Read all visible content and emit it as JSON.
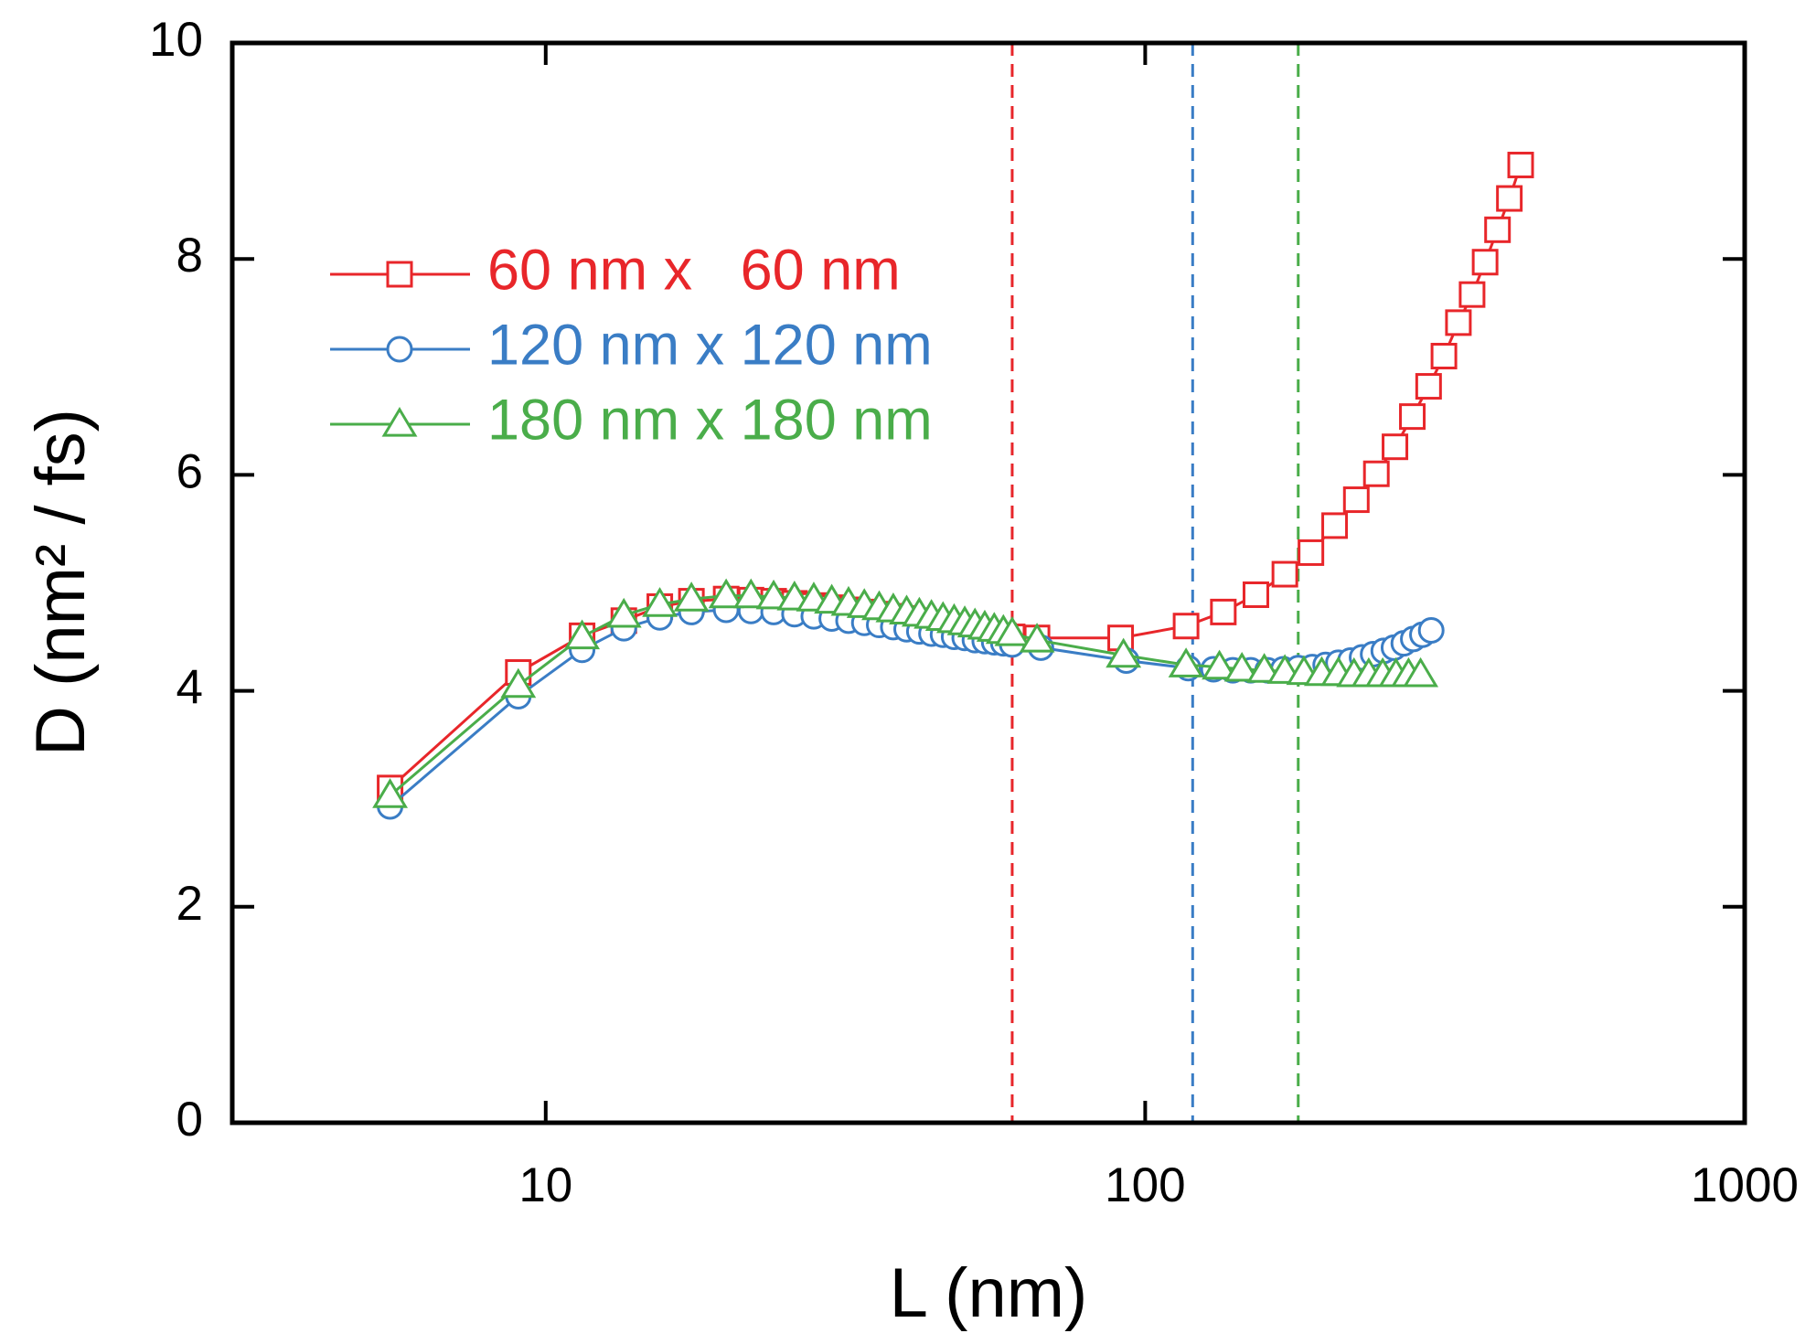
{
  "chart_data": {
    "type": "line",
    "xlabel": "L (nm)",
    "ylabel": "D (nm² / fs)",
    "xscale": "log",
    "xlim": [
      3,
      1000
    ],
    "xticks": [
      10,
      100,
      1000
    ],
    "ylim": [
      0,
      10
    ],
    "yticks": [
      0,
      2,
      4,
      6,
      8,
      10
    ],
    "legend": "upper left",
    "grid": false,
    "vlines": [
      {
        "x": 60,
        "color": "#e8262a"
      },
      {
        "x": 120,
        "color": "#3a7dc5"
      },
      {
        "x": 180,
        "color": "#4aad4a"
      }
    ],
    "series": [
      {
        "name": "60 nm x   60 nm",
        "color": "#e8262a",
        "marker": "square",
        "x": [
          5.5,
          9,
          11.5,
          13.5,
          15.5,
          17.5,
          20,
          22,
          24,
          26,
          28,
          30,
          32,
          34,
          36,
          38,
          40,
          42,
          44,
          46,
          48,
          50,
          52,
          54,
          56,
          58,
          60,
          66,
          91,
          117,
          135,
          153,
          171,
          189,
          207,
          225,
          243,
          261,
          279,
          297,
          315,
          333,
          351,
          369,
          387,
          405,
          423
        ],
        "values": [
          3.1,
          4.17,
          4.51,
          4.65,
          4.78,
          4.83,
          4.85,
          4.84,
          4.83,
          4.81,
          4.79,
          4.77,
          4.75,
          4.73,
          4.71,
          4.69,
          4.67,
          4.65,
          4.63,
          4.61,
          4.59,
          4.57,
          4.55,
          4.54,
          4.52,
          4.51,
          4.5,
          4.49,
          4.49,
          4.6,
          4.73,
          4.89,
          5.08,
          5.28,
          5.53,
          5.77,
          6.01,
          6.26,
          6.54,
          6.82,
          7.1,
          7.41,
          7.67,
          7.97,
          8.27,
          8.56,
          8.87
        ]
      },
      {
        "name": "120 nm x 120 nm",
        "color": "#3a7dc5",
        "marker": "circle",
        "x": [
          5.5,
          9,
          11.5,
          13.5,
          15.5,
          17.5,
          20,
          22,
          24,
          26,
          28,
          30,
          32,
          34,
          36,
          38,
          40,
          42,
          44,
          46,
          48,
          50,
          52,
          54,
          56,
          58,
          60,
          67,
          93,
          118,
          130,
          140,
          150,
          160,
          170,
          180,
          190,
          200,
          210,
          220,
          230,
          240,
          250,
          260,
          270,
          280,
          290,
          300
        ],
        "values": [
          2.93,
          3.95,
          4.38,
          4.58,
          4.68,
          4.73,
          4.75,
          4.74,
          4.73,
          4.71,
          4.69,
          4.67,
          4.65,
          4.63,
          4.61,
          4.59,
          4.57,
          4.55,
          4.53,
          4.52,
          4.5,
          4.49,
          4.47,
          4.46,
          4.45,
          4.44,
          4.43,
          4.4,
          4.28,
          4.21,
          4.2,
          4.19,
          4.19,
          4.19,
          4.2,
          4.21,
          4.22,
          4.24,
          4.26,
          4.28,
          4.31,
          4.34,
          4.37,
          4.4,
          4.44,
          4.48,
          4.52,
          4.56
        ]
      },
      {
        "name": "180 nm x 180 nm",
        "color": "#4aad4a",
        "marker": "triangle",
        "x": [
          5.5,
          9,
          11.5,
          13.5,
          15.5,
          17.5,
          20,
          22,
          24,
          26,
          28,
          30,
          32,
          34,
          36,
          38,
          40,
          42,
          44,
          46,
          48,
          50,
          52,
          54,
          56,
          58,
          60,
          66,
          92,
          117,
          133,
          145,
          158,
          171,
          184,
          197,
          210,
          223,
          236,
          249,
          262,
          275,
          288
        ],
        "values": [
          3.03,
          4.05,
          4.5,
          4.7,
          4.8,
          4.85,
          4.88,
          4.88,
          4.87,
          4.86,
          4.85,
          4.83,
          4.81,
          4.79,
          4.77,
          4.75,
          4.73,
          4.71,
          4.69,
          4.67,
          4.65,
          4.63,
          4.61,
          4.59,
          4.57,
          4.55,
          4.53,
          4.47,
          4.33,
          4.24,
          4.22,
          4.2,
          4.19,
          4.18,
          4.17,
          4.16,
          4.16,
          4.15,
          4.15,
          4.15,
          4.15,
          4.15,
          4.15
        ]
      }
    ]
  }
}
